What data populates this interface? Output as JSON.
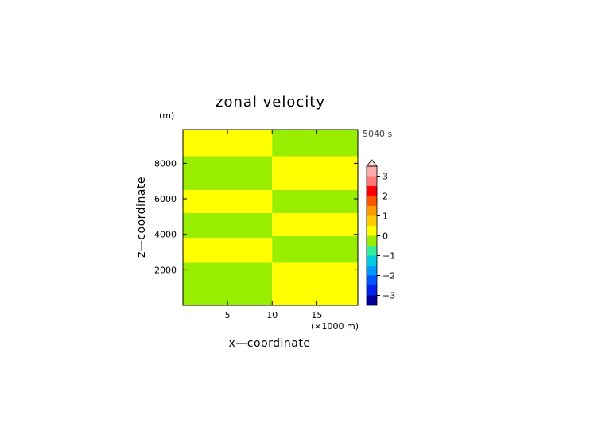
{
  "chart_data": {
    "type": "heatmap",
    "title": "zonal velocity",
    "xlabel": "x—coordinate",
    "ylabel": "z—coordinate",
    "x_unit": "(×1000 m)",
    "y_unit": "(m)",
    "time_label": "5040 s",
    "xlim": [
      0,
      19.6
    ],
    "ylim": [
      0,
      9900
    ],
    "x_ticks": [
      5,
      10,
      15
    ],
    "x_tick_labels": [
      "5",
      "10",
      "15"
    ],
    "y_ticks": [
      2000,
      4000,
      6000,
      8000
    ],
    "y_tick_labels": [
      "2000",
      "4000",
      "6000",
      "8000"
    ],
    "split_x": 10,
    "left_columns": {
      "x_range": [
        0,
        10
      ],
      "bands": [
        {
          "z0": 0,
          "z1": 2400,
          "value": "0-",
          "color": "#99ee00"
        },
        {
          "z0": 2400,
          "z1": 3800,
          "value": "0+",
          "color": "#ffff00"
        },
        {
          "z0": 3800,
          "z1": 5200,
          "value": "0-",
          "color": "#99ee00"
        },
        {
          "z0": 5200,
          "z1": 6500,
          "value": "0+",
          "color": "#ffff00"
        },
        {
          "z0": 6500,
          "z1": 8400,
          "value": "0-",
          "color": "#99ee00"
        },
        {
          "z0": 8400,
          "z1": 9900,
          "value": "0+",
          "color": "#ffff00"
        }
      ]
    },
    "right_columns": {
      "x_range": [
        10,
        19.6
      ],
      "bands": [
        {
          "z0": 0,
          "z1": 2400,
          "value": "0+",
          "color": "#ffff00"
        },
        {
          "z0": 2400,
          "z1": 3900,
          "value": "0-",
          "color": "#99ee00"
        },
        {
          "z0": 3900,
          "z1": 5200,
          "value": "0+",
          "color": "#ffff00"
        },
        {
          "z0": 5200,
          "z1": 6500,
          "value": "0-",
          "color": "#99ee00"
        },
        {
          "z0": 6500,
          "z1": 8400,
          "value": "0+",
          "color": "#ffff00"
        },
        {
          "z0": 8400,
          "z1": 9900,
          "value": "0-",
          "color": "#99ee00"
        }
      ]
    },
    "colorbar": {
      "min": -3.5,
      "max": 3.5,
      "tick_values": [
        3,
        2,
        1,
        0,
        -1,
        -2,
        -3
      ],
      "tick_labels": [
        "3",
        "2",
        "1",
        "0",
        "−1",
        "−2",
        "−3"
      ],
      "segments": [
        {
          "lo": 3.0,
          "hi": 3.5,
          "color": "#ffaaaa"
        },
        {
          "lo": 2.5,
          "hi": 3.0,
          "color": "#ff7777"
        },
        {
          "lo": 2.0,
          "hi": 2.5,
          "color": "#ff0000"
        },
        {
          "lo": 1.5,
          "hi": 2.0,
          "color": "#ff5500"
        },
        {
          "lo": 1.0,
          "hi": 1.5,
          "color": "#ff9900"
        },
        {
          "lo": 0.5,
          "hi": 1.0,
          "color": "#ffcc00"
        },
        {
          "lo": 0.0,
          "hi": 0.5,
          "color": "#ffff00"
        },
        {
          "lo": -0.5,
          "hi": 0.0,
          "color": "#99ee00"
        },
        {
          "lo": -1.0,
          "hi": -0.5,
          "color": "#33ee99"
        },
        {
          "lo": -1.5,
          "hi": -1.0,
          "color": "#00ccdd"
        },
        {
          "lo": -2.0,
          "hi": -1.5,
          "color": "#0099ff"
        },
        {
          "lo": -2.5,
          "hi": -2.0,
          "color": "#0055ff"
        },
        {
          "lo": -3.0,
          "hi": -2.5,
          "color": "#0022ee"
        },
        {
          "lo": -3.5,
          "hi": -3.0,
          "color": "#000099"
        }
      ],
      "overflow_color": "#ffdddd"
    }
  }
}
